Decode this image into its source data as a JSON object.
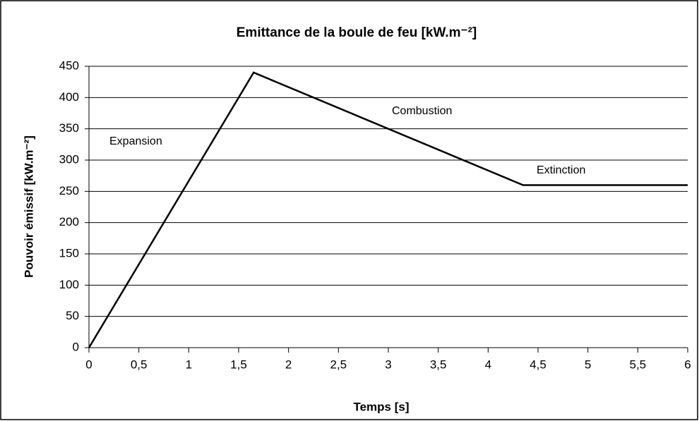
{
  "chart_data": {
    "type": "line",
    "title": "Emittance de la boule de feu [kW.m⁻²]",
    "x_label": "Temps [s]",
    "y_label": "Pouvoir émissif [kW.m⁻²]",
    "x": [
      0,
      1.65,
      4.35,
      6
    ],
    "values": [
      0,
      440,
      260,
      260
    ],
    "color": "#000000",
    "xlim": [
      0,
      6
    ],
    "xticks": [
      0,
      {
        "value": 0.5,
        "label": "0,5"
      },
      1,
      {
        "value": 1.5,
        "label": "1,5"
      },
      2,
      {
        "value": 2.5,
        "label": "2,5"
      },
      3,
      {
        "value": 3.5,
        "label": "3,5"
      },
      4,
      {
        "value": 4.5,
        "label": "4,5"
      },
      5,
      {
        "value": 5.5,
        "label": "5,5"
      },
      6
    ],
    "ylim": [
      0,
      450
    ],
    "yticks": [
      0,
      50,
      100,
      150,
      200,
      250,
      300,
      350,
      400,
      450
    ],
    "grid": true,
    "annotations": [
      "Expansion",
      "Combustion",
      "Extinction"
    ]
  }
}
